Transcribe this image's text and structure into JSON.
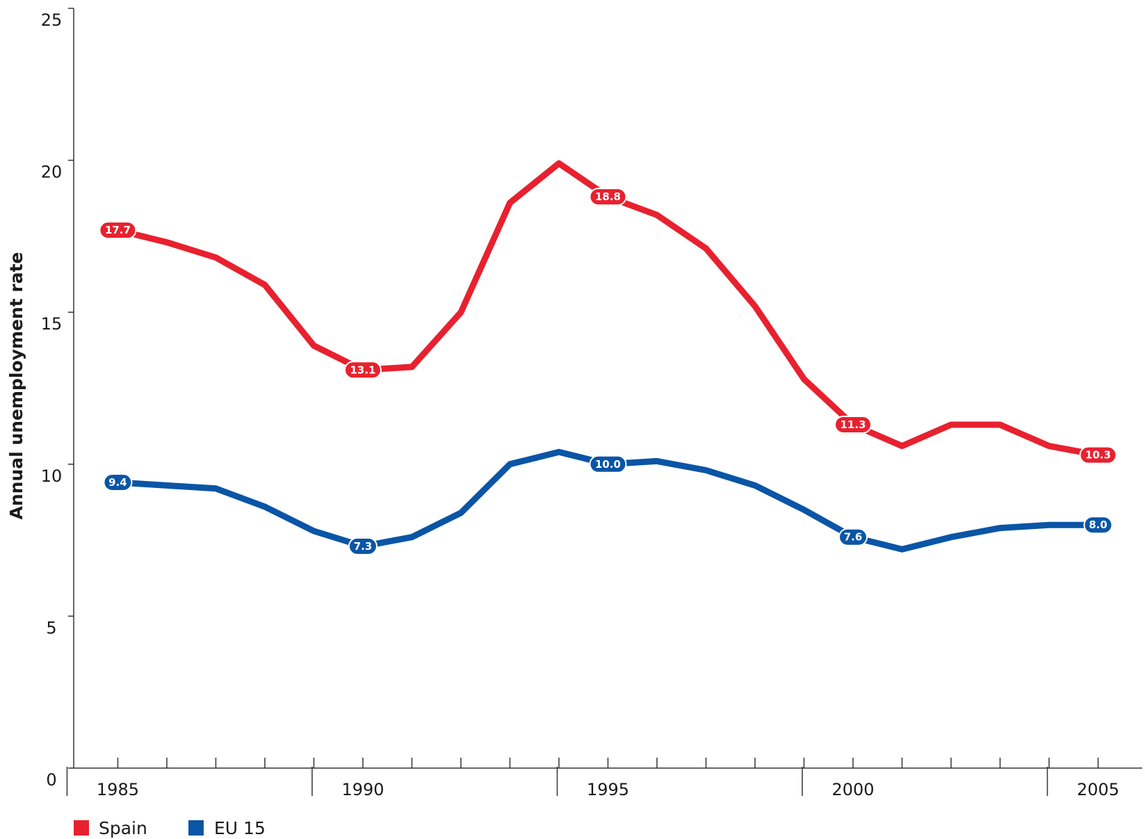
{
  "chart_data": {
    "type": "line",
    "title": "",
    "xlabel": "",
    "ylabel": "Annual unemployment rate",
    "xlim": [
      1984.1,
      2005.9
    ],
    "ylim": [
      0,
      25
    ],
    "y_ticks": [
      0,
      5,
      10,
      15,
      20,
      25
    ],
    "x_ticks_labeled": [
      1985,
      1990,
      1995,
      2000,
      2005
    ],
    "grid": false,
    "legend_position": "bottom-left",
    "x": [
      1985,
      1986,
      1987,
      1988,
      1989,
      1990,
      1991,
      1992,
      1993,
      1994,
      1995,
      1996,
      1997,
      1998,
      1999,
      2000,
      2001,
      2002,
      2003,
      2004,
      2005
    ],
    "series": [
      {
        "name": "Spain",
        "color": "#e8212f",
        "values": [
          17.7,
          17.3,
          16.8,
          15.9,
          13.9,
          13.1,
          13.2,
          15.0,
          18.6,
          19.9,
          18.8,
          18.2,
          17.1,
          15.2,
          12.8,
          11.3,
          10.6,
          11.3,
          11.3,
          10.6,
          10.3
        ],
        "labeled_points": [
          {
            "x": 1985,
            "label": "17.7"
          },
          {
            "x": 1990,
            "label": "13.1"
          },
          {
            "x": 1995,
            "label": "18.8"
          },
          {
            "x": 2000,
            "label": "11.3"
          },
          {
            "x": 2005,
            "label": "10.3"
          }
        ]
      },
      {
        "name": "EU 15",
        "color": "#0a55a6",
        "values": [
          9.4,
          9.3,
          9.2,
          8.6,
          7.8,
          7.3,
          7.6,
          8.4,
          10.0,
          10.4,
          10.0,
          10.1,
          9.8,
          9.3,
          8.5,
          7.6,
          7.2,
          7.6,
          7.9,
          8.0,
          8.0
        ],
        "labeled_points": [
          {
            "x": 1985,
            "label": "9.4"
          },
          {
            "x": 1990,
            "label": "7.3"
          },
          {
            "x": 1995,
            "label": "10.0"
          },
          {
            "x": 2000,
            "label": "7.6"
          },
          {
            "x": 2005,
            "label": "8.0"
          }
        ]
      }
    ]
  },
  "legend": {
    "items": [
      {
        "label": "Spain",
        "color": "#e8212f"
      },
      {
        "label": "EU 15",
        "color": "#0a55a6"
      }
    ]
  }
}
